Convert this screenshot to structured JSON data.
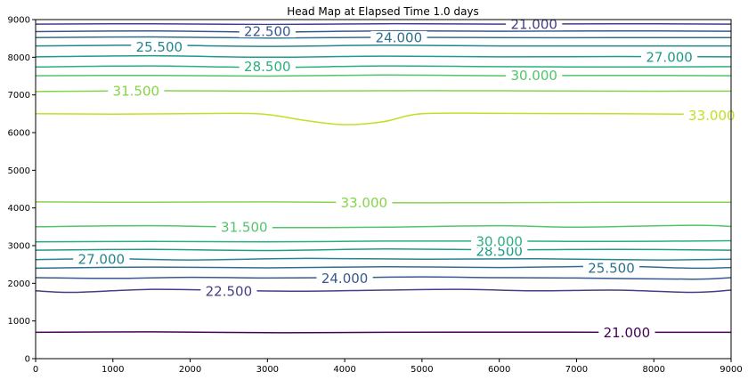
{
  "chart_data": {
    "type": "contour",
    "title": "Head Map at Elapsed Time 1.0 days",
    "xlabel": "",
    "ylabel": "",
    "xlim": [
      0,
      9000
    ],
    "ylim": [
      0,
      9000
    ],
    "xticks": [
      "0",
      "1000",
      "2000",
      "3000",
      "4000",
      "5000",
      "6000",
      "7000",
      "8000",
      "9000"
    ],
    "yticks": [
      "0",
      "1000",
      "2000",
      "3000",
      "4000",
      "5000",
      "6000",
      "7000",
      "8000",
      "9000"
    ],
    "grid": false,
    "contours": [
      {
        "level": 21.0,
        "color": "#440154",
        "points": [
          [
            0,
            700
          ],
          [
            1500,
            710
          ],
          [
            3000,
            690
          ],
          [
            4500,
            700
          ],
          [
            6000,
            705
          ],
          [
            7500,
            700
          ],
          [
            9000,
            700
          ]
        ]
      },
      {
        "level": 22.5,
        "color": "#433e85",
        "points": [
          [
            0,
            1800
          ],
          [
            500,
            1760
          ],
          [
            1500,
            1840
          ],
          [
            2500,
            1810
          ],
          [
            3500,
            1790
          ],
          [
            4500,
            1820
          ],
          [
            5500,
            1840
          ],
          [
            6500,
            1800
          ],
          [
            7500,
            1820
          ],
          [
            8500,
            1760
          ],
          [
            9000,
            1820
          ]
        ]
      },
      {
        "level": 24.0,
        "color": "#38598c",
        "points": [
          [
            0,
            2150
          ],
          [
            1000,
            2130
          ],
          [
            2000,
            2160
          ],
          [
            3000,
            2140
          ],
          [
            4000,
            2150
          ],
          [
            5000,
            2170
          ],
          [
            6000,
            2150
          ],
          [
            7000,
            2140
          ],
          [
            8500,
            2110
          ],
          [
            9000,
            2150
          ]
        ]
      },
      {
        "level": 25.5,
        "color": "#2d708e",
        "points": [
          [
            0,
            2400
          ],
          [
            1500,
            2430
          ],
          [
            3000,
            2410
          ],
          [
            4500,
            2440
          ],
          [
            6000,
            2420
          ],
          [
            7500,
            2450
          ],
          [
            8500,
            2400
          ],
          [
            9000,
            2420
          ]
        ]
      },
      {
        "level": 27.0,
        "color": "#25858e",
        "points": [
          [
            0,
            2630
          ],
          [
            1000,
            2650
          ],
          [
            2000,
            2620
          ],
          [
            3500,
            2660
          ],
          [
            5000,
            2640
          ],
          [
            6500,
            2650
          ],
          [
            8000,
            2620
          ],
          [
            9000,
            2640
          ]
        ]
      },
      {
        "level": 28.5,
        "color": "#1e9b8a",
        "points": [
          [
            0,
            2880
          ],
          [
            1500,
            2900
          ],
          [
            3000,
            2870
          ],
          [
            4500,
            2910
          ],
          [
            6000,
            2890
          ],
          [
            7500,
            2900
          ],
          [
            9000,
            2880
          ]
        ]
      },
      {
        "level": 30.0,
        "color": "#2ab07f",
        "points": [
          [
            0,
            3100
          ],
          [
            1500,
            3110
          ],
          [
            3000,
            3100
          ],
          [
            4500,
            3120
          ],
          [
            6000,
            3120
          ],
          [
            7500,
            3110
          ],
          [
            9000,
            3130
          ]
        ]
      },
      {
        "level": 31.5,
        "color": "#52c569",
        "points": [
          [
            0,
            3500
          ],
          [
            1500,
            3530
          ],
          [
            3000,
            3480
          ],
          [
            4500,
            3490
          ],
          [
            6000,
            3530
          ],
          [
            7000,
            3490
          ],
          [
            8500,
            3540
          ],
          [
            9000,
            3510
          ]
        ]
      },
      {
        "level": 33.0,
        "color": "#86d549",
        "points": [
          [
            0,
            4160
          ],
          [
            1500,
            4150
          ],
          [
            3000,
            4160
          ],
          [
            4500,
            4140
          ],
          [
            6000,
            4140
          ],
          [
            7500,
            4150
          ],
          [
            9000,
            4150
          ]
        ]
      },
      {
        "level": 33.0,
        "color": "#c2df23",
        "points": [
          [
            0,
            6500
          ],
          [
            1000,
            6490
          ],
          [
            2500,
            6510
          ],
          [
            3000,
            6480
          ],
          [
            3500,
            6320
          ],
          [
            4000,
            6210
          ],
          [
            4500,
            6290
          ],
          [
            5000,
            6500
          ],
          [
            6000,
            6510
          ],
          [
            7500,
            6500
          ],
          [
            8500,
            6490
          ],
          [
            9000,
            6480
          ]
        ]
      },
      {
        "level": 31.5,
        "color": "#86d549",
        "points": [
          [
            0,
            7090
          ],
          [
            1500,
            7110
          ],
          [
            3000,
            7100
          ],
          [
            4500,
            7110
          ],
          [
            6000,
            7110
          ],
          [
            7500,
            7100
          ],
          [
            9000,
            7100
          ]
        ]
      },
      {
        "level": 30.0,
        "color": "#52c569",
        "points": [
          [
            0,
            7510
          ],
          [
            1500,
            7520
          ],
          [
            3000,
            7500
          ],
          [
            4500,
            7530
          ],
          [
            6000,
            7510
          ],
          [
            7500,
            7520
          ],
          [
            9000,
            7510
          ]
        ]
      },
      {
        "level": 28.5,
        "color": "#2ab07f",
        "points": [
          [
            0,
            7740
          ],
          [
            1500,
            7770
          ],
          [
            3000,
            7730
          ],
          [
            4500,
            7770
          ],
          [
            6000,
            7750
          ],
          [
            7500,
            7740
          ],
          [
            9000,
            7750
          ]
        ]
      },
      {
        "level": 27.0,
        "color": "#1e9b8a",
        "points": [
          [
            0,
            8010
          ],
          [
            1500,
            8040
          ],
          [
            3000,
            8000
          ],
          [
            4500,
            8030
          ],
          [
            6000,
            8010
          ],
          [
            7500,
            8020
          ],
          [
            9000,
            8010
          ]
        ]
      },
      {
        "level": 25.5,
        "color": "#25858e",
        "points": [
          [
            0,
            8300
          ],
          [
            1500,
            8320
          ],
          [
            3000,
            8290
          ],
          [
            4500,
            8320
          ],
          [
            6000,
            8300
          ],
          [
            7500,
            8300
          ],
          [
            9000,
            8300
          ]
        ]
      },
      {
        "level": 24.0,
        "color": "#2d708e",
        "points": [
          [
            0,
            8520
          ],
          [
            1500,
            8540
          ],
          [
            3000,
            8510
          ],
          [
            4500,
            8530
          ],
          [
            6000,
            8520
          ],
          [
            7500,
            8520
          ],
          [
            9000,
            8520
          ]
        ]
      },
      {
        "level": 22.5,
        "color": "#38598c",
        "points": [
          [
            0,
            8680
          ],
          [
            1500,
            8700
          ],
          [
            3000,
            8670
          ],
          [
            4500,
            8700
          ],
          [
            6000,
            8690
          ],
          [
            7500,
            8700
          ],
          [
            9000,
            8690
          ]
        ]
      },
      {
        "level": 21.0,
        "color": "#433e85",
        "points": [
          [
            0,
            8880
          ],
          [
            1500,
            8890
          ],
          [
            3000,
            8870
          ],
          [
            4500,
            8890
          ],
          [
            6000,
            8880
          ],
          [
            7500,
            8890
          ],
          [
            9000,
            8880
          ]
        ]
      }
    ],
    "labels": [
      {
        "text": "21.000",
        "x": 7650,
        "y": 700,
        "color": "#440154"
      },
      {
        "text": "22.500",
        "x": 2500,
        "y": 1800,
        "color": "#433e85"
      },
      {
        "text": "24.000",
        "x": 4000,
        "y": 2140,
        "color": "#38598c"
      },
      {
        "text": "25.500",
        "x": 7450,
        "y": 2410,
        "color": "#2d708e"
      },
      {
        "text": "27.000",
        "x": 850,
        "y": 2640,
        "color": "#25858e"
      },
      {
        "text": "28.500",
        "x": 6000,
        "y": 2860,
        "color": "#1e9b8a"
      },
      {
        "text": "30.000",
        "x": 6000,
        "y": 3120,
        "color": "#2ab07f"
      },
      {
        "text": "31.500",
        "x": 2700,
        "y": 3500,
        "color": "#52c569"
      },
      {
        "text": "33.000",
        "x": 4250,
        "y": 4150,
        "color": "#86d549"
      },
      {
        "text": "33.000",
        "x": 8750,
        "y": 6460,
        "color": "#c2df23"
      },
      {
        "text": "31.500",
        "x": 1300,
        "y": 7110,
        "color": "#86d549"
      },
      {
        "text": "30.000",
        "x": 6450,
        "y": 7520,
        "color": "#52c569"
      },
      {
        "text": "28.500",
        "x": 3000,
        "y": 7760,
        "color": "#2ab07f"
      },
      {
        "text": "27.000",
        "x": 8200,
        "y": 8010,
        "color": "#1e9b8a"
      },
      {
        "text": "25.500",
        "x": 1600,
        "y": 8280,
        "color": "#25858e"
      },
      {
        "text": "24.000",
        "x": 4700,
        "y": 8530,
        "color": "#2d708e"
      },
      {
        "text": "22.500",
        "x": 3000,
        "y": 8690,
        "color": "#38598c"
      },
      {
        "text": "21.000",
        "x": 6450,
        "y": 8880,
        "color": "#433e85"
      }
    ]
  }
}
